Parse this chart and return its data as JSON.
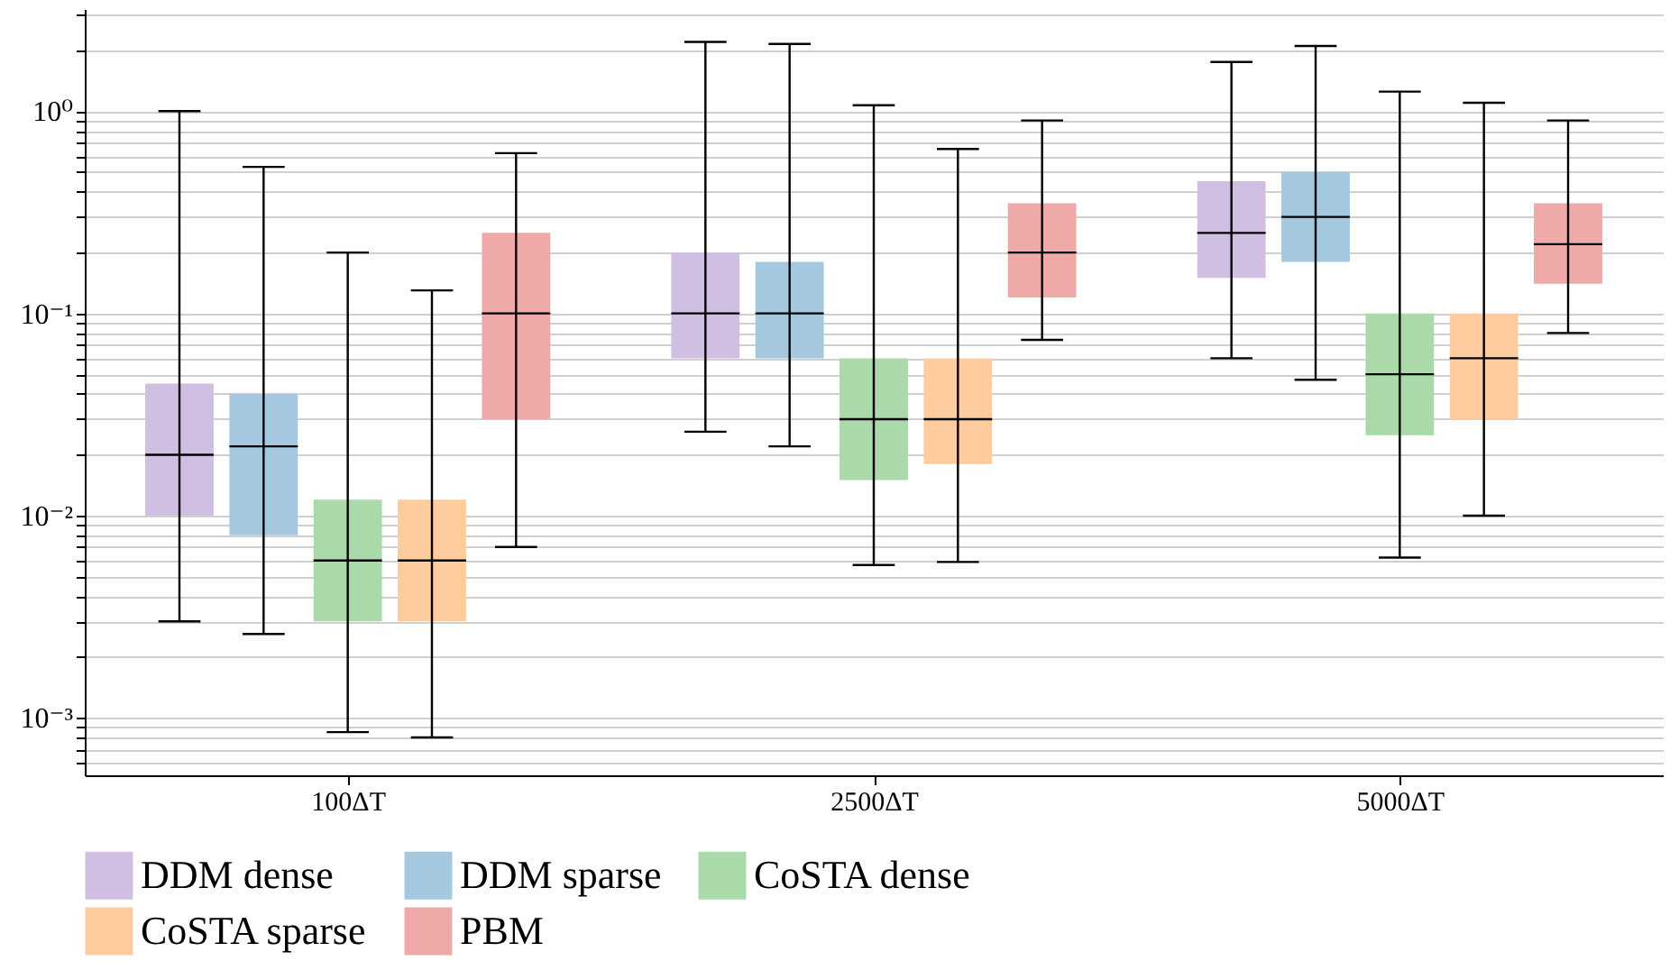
{
  "chart_data": {
    "type": "box",
    "categories": [
      "100ΔT",
      "2500ΔT",
      "5000ΔT"
    ],
    "series": [
      {
        "name": "DDM dense",
        "color": "#d0bfe3",
        "boxes": [
          {
            "low": 0.003,
            "q1": 0.01,
            "median": 0.02,
            "q3": 0.045,
            "high": 1.0
          },
          {
            "low": 0.026,
            "q1": 0.06,
            "median": 0.1,
            "q3": 0.2,
            "high": 2.2
          },
          {
            "low": 0.06,
            "q1": 0.15,
            "median": 0.25,
            "q3": 0.45,
            "high": 1.75
          }
        ]
      },
      {
        "name": "DDM sparse",
        "color": "#a5c8e1",
        "boxes": [
          {
            "low": 0.0026,
            "q1": 0.008,
            "median": 0.022,
            "q3": 0.04,
            "high": 0.53
          },
          {
            "low": 0.022,
            "q1": 0.06,
            "median": 0.1,
            "q3": 0.18,
            "high": 2.15
          },
          {
            "low": 0.047,
            "q1": 0.18,
            "median": 0.3,
            "q3": 0.5,
            "high": 2.1
          }
        ]
      },
      {
        "name": "CoSTA dense",
        "color": "#aad9aa",
        "boxes": [
          {
            "low": 0.00085,
            "q1": 0.003,
            "median": 0.006,
            "q3": 0.012,
            "high": 0.2
          },
          {
            "low": 0.0057,
            "q1": 0.015,
            "median": 0.03,
            "q3": 0.06,
            "high": 1.07
          },
          {
            "low": 0.0062,
            "q1": 0.025,
            "median": 0.05,
            "q3": 0.1,
            "high": 1.25
          }
        ]
      },
      {
        "name": "CoSTA sparse",
        "color": "#ffcc9f",
        "boxes": [
          {
            "low": 0.0008,
            "q1": 0.003,
            "median": 0.006,
            "q3": 0.012,
            "high": 0.13
          },
          {
            "low": 0.0059,
            "q1": 0.018,
            "median": 0.03,
            "q3": 0.06,
            "high": 0.65
          },
          {
            "low": 0.01,
            "q1": 0.03,
            "median": 0.06,
            "q3": 0.1,
            "high": 1.1
          }
        ]
      },
      {
        "name": "PBM",
        "color": "#efa9a9",
        "boxes": [
          {
            "low": 0.007,
            "q1": 0.03,
            "median": 0.1,
            "q3": 0.25,
            "high": 0.62
          },
          {
            "low": 0.074,
            "q1": 0.12,
            "median": 0.2,
            "q3": 0.35,
            "high": 0.9
          },
          {
            "low": 0.08,
            "q1": 0.14,
            "median": 0.22,
            "q3": 0.35,
            "high": 0.9
          }
        ]
      }
    ],
    "log": "y",
    "ylim": [
      0.00052,
      3.2
    ],
    "yticks": [
      {
        "value": 0.0006,
        "label": null
      },
      {
        "value": 0.0007,
        "label": null
      },
      {
        "value": 0.0008,
        "label": null
      },
      {
        "value": 0.0009,
        "label": null
      },
      {
        "value": 0.001,
        "label": "10⁻³"
      },
      {
        "value": 0.002,
        "label": null
      },
      {
        "value": 0.003,
        "label": null
      },
      {
        "value": 0.004,
        "label": null
      },
      {
        "value": 0.005,
        "label": null
      },
      {
        "value": 0.006,
        "label": null
      },
      {
        "value": 0.007,
        "label": null
      },
      {
        "value": 0.008,
        "label": null
      },
      {
        "value": 0.009,
        "label": null
      },
      {
        "value": 0.01,
        "label": "10⁻²"
      },
      {
        "value": 0.02,
        "label": null
      },
      {
        "value": 0.03,
        "label": null
      },
      {
        "value": 0.04,
        "label": null
      },
      {
        "value": 0.05,
        "label": null
      },
      {
        "value": 0.06,
        "label": null
      },
      {
        "value": 0.07,
        "label": null
      },
      {
        "value": 0.08,
        "label": null
      },
      {
        "value": 0.09,
        "label": null
      },
      {
        "value": 0.1,
        "label": "10⁻¹"
      },
      {
        "value": 0.2,
        "label": null
      },
      {
        "value": 0.3,
        "label": null
      },
      {
        "value": 0.4,
        "label": null
      },
      {
        "value": 0.5,
        "label": null
      },
      {
        "value": 0.6,
        "label": null
      },
      {
        "value": 0.7,
        "label": null
      },
      {
        "value": 0.8,
        "label": null
      },
      {
        "value": 0.9,
        "label": null
      },
      {
        "value": 1,
        "label": "10⁰"
      },
      {
        "value": 2,
        "label": null
      },
      {
        "value": 3,
        "label": null
      }
    ],
    "grid": "y",
    "legend": "bottom"
  }
}
